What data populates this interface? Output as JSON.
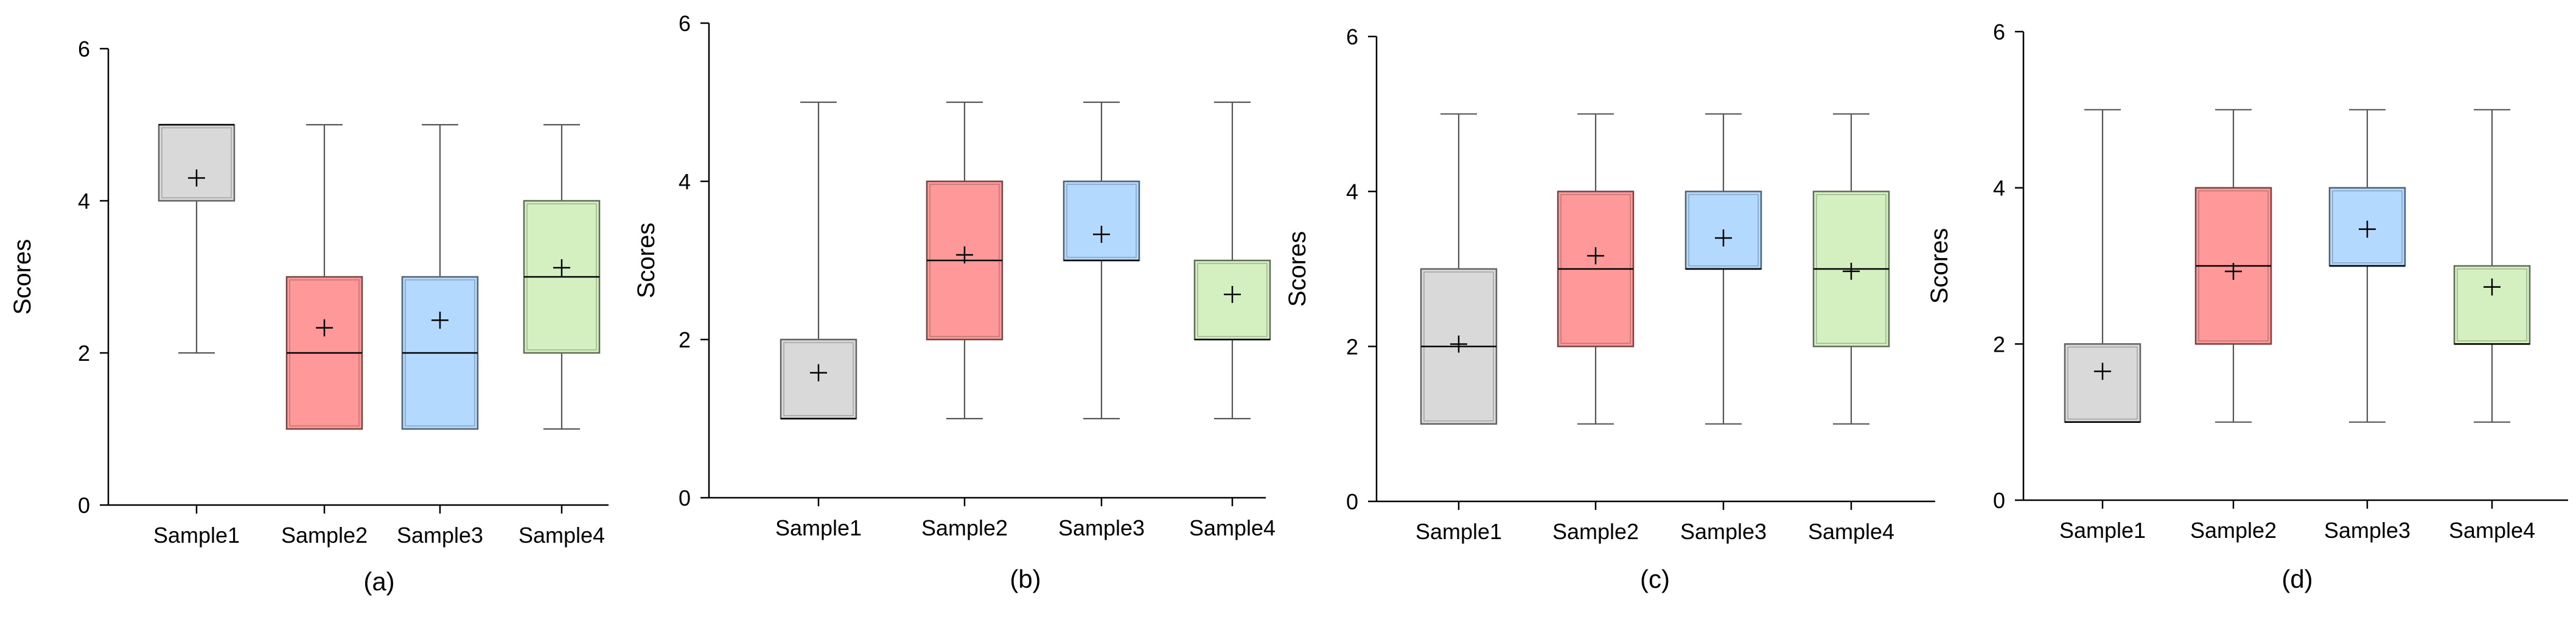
{
  "chart_data": [
    {
      "type": "box",
      "panel_label": "(a)",
      "ylabel": "Scores",
      "ylim": [
        0,
        6
      ],
      "yticks": [
        0,
        2,
        4,
        6
      ],
      "categories": [
        "Sample1",
        "Sample2",
        "Sample3",
        "Sample4"
      ],
      "boxes": [
        {
          "min": 2,
          "q1": 4,
          "median": 5,
          "q3": 5,
          "max": 5,
          "mean": 4.3,
          "color": "#d9d9d9"
        },
        {
          "min": 1,
          "q1": 1,
          "median": 2,
          "q3": 3,
          "max": 5,
          "mean": 2.33,
          "color": "#ff9999"
        },
        {
          "min": 1,
          "q1": 1,
          "median": 2,
          "q3": 3,
          "max": 5,
          "mean": 2.43,
          "color": "#b3d9ff"
        },
        {
          "min": 1,
          "q1": 2,
          "median": 3,
          "q3": 4,
          "max": 5,
          "mean": 3.12,
          "color": "#d4efc0"
        }
      ]
    },
    {
      "type": "box",
      "panel_label": "(b)",
      "ylabel": "Scores",
      "ylim": [
        0,
        6
      ],
      "yticks": [
        0,
        2,
        4,
        6
      ],
      "categories": [
        "Sample1",
        "Sample2",
        "Sample3",
        "Sample4"
      ],
      "boxes": [
        {
          "min": 1,
          "q1": 1,
          "median": 1,
          "q3": 2,
          "max": 5,
          "mean": 1.58,
          "color": "#d9d9d9"
        },
        {
          "min": 1,
          "q1": 2,
          "median": 3,
          "q3": 4,
          "max": 5,
          "mean": 3.07,
          "color": "#ff9999"
        },
        {
          "min": 1,
          "q1": 3,
          "median": 3,
          "q3": 4,
          "max": 5,
          "mean": 3.33,
          "color": "#b3d9ff"
        },
        {
          "min": 1,
          "q1": 2,
          "median": 2,
          "q3": 3,
          "max": 5,
          "mean": 2.57,
          "color": "#d4efc0"
        }
      ]
    },
    {
      "type": "box",
      "panel_label": "(c)",
      "ylabel": "Scores",
      "ylim": [
        0,
        6
      ],
      "yticks": [
        0,
        2,
        4,
        6
      ],
      "categories": [
        "Sample1",
        "Sample2",
        "Sample3",
        "Sample4"
      ],
      "boxes": [
        {
          "min": 1,
          "q1": 1,
          "median": 2,
          "q3": 3,
          "max": 5,
          "mean": 2.03,
          "color": "#d9d9d9"
        },
        {
          "min": 1,
          "q1": 2,
          "median": 3,
          "q3": 4,
          "max": 5,
          "mean": 3.17,
          "color": "#ff9999"
        },
        {
          "min": 1,
          "q1": 3,
          "median": 3,
          "q3": 4,
          "max": 5,
          "mean": 3.4,
          "color": "#b3d9ff"
        },
        {
          "min": 1,
          "q1": 2,
          "median": 3,
          "q3": 4,
          "max": 5,
          "mean": 2.97,
          "color": "#d4efc0"
        }
      ]
    },
    {
      "type": "box",
      "panel_label": "(d)",
      "ylabel": "Scores",
      "ylim": [
        0,
        6
      ],
      "yticks": [
        0,
        2,
        4,
        6
      ],
      "categories": [
        "Sample1",
        "Sample2",
        "Sample3",
        "Sample4"
      ],
      "boxes": [
        {
          "min": 1,
          "q1": 1,
          "median": 1,
          "q3": 2,
          "max": 5,
          "mean": 1.65,
          "color": "#d9d9d9"
        },
        {
          "min": 1,
          "q1": 2,
          "median": 3,
          "q3": 4,
          "max": 5,
          "mean": 2.93,
          "color": "#ff9999"
        },
        {
          "min": 1,
          "q1": 3,
          "median": 3,
          "q3": 4,
          "max": 5,
          "mean": 3.47,
          "color": "#b3d9ff"
        },
        {
          "min": 1,
          "q1": 2,
          "median": 2,
          "q3": 3,
          "max": 5,
          "mean": 2.73,
          "color": "#d4efc0"
        }
      ]
    }
  ]
}
